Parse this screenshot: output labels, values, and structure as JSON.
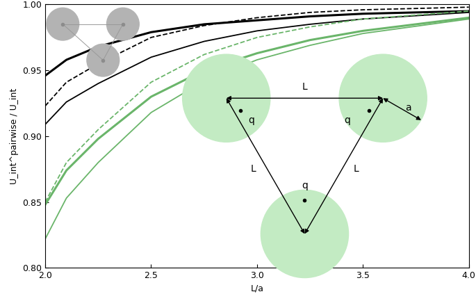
{
  "chart_data": {
    "type": "line",
    "xlabel": "L/a",
    "ylabel": "U_int^pairwise / U_int",
    "xlim": [
      2.0,
      4.0
    ],
    "ylim": [
      0.8,
      1.0
    ],
    "xticks": [
      2.0,
      2.5,
      3.0,
      3.5,
      4.0
    ],
    "yticks": [
      {
        "value": 0.8,
        "label": "0.80"
      },
      0.85,
      {
        "value": 0.9,
        "label": "0.90"
      },
      0.95,
      {
        "value": 1.0,
        "label": "1.00"
      }
    ],
    "grid": false,
    "x": [
      2.0,
      2.1,
      2.25,
      2.5,
      2.75,
      3.0,
      3.25,
      3.5,
      4.0
    ],
    "series": [
      {
        "color": "#000000",
        "line_style": "solid",
        "values": [
          0.946,
          0.958,
          0.968,
          0.979,
          0.985,
          0.988,
          0.991,
          0.993,
          0.995
        ]
      },
      {
        "color": "#000000",
        "line_style": "dashed",
        "values": [
          0.923,
          0.941,
          0.955,
          0.975,
          0.984,
          0.99,
          0.994,
          0.996,
          0.998
        ]
      },
      {
        "color": "#000000",
        "line_style": "solid",
        "values": [
          0.909,
          0.926,
          0.94,
          0.96,
          0.972,
          0.98,
          0.985,
          0.989,
          0.994
        ]
      },
      {
        "color": "#6ab56a",
        "line_style": "dashed",
        "values": [
          0.85,
          0.88,
          0.905,
          0.941,
          0.962,
          0.975,
          0.983,
          0.989,
          0.995
        ]
      },
      {
        "color": "#6ab56a",
        "line_style": "solid",
        "values": [
          0.848,
          0.874,
          0.898,
          0.93,
          0.95,
          0.963,
          0.973,
          0.98,
          0.99
        ]
      },
      {
        "color": "#6ab56a",
        "line_style": "solid",
        "values": [
          0.822,
          0.853,
          0.88,
          0.918,
          0.942,
          0.958,
          0.969,
          0.978,
          0.989
        ]
      }
    ],
    "annotations": [
      "L",
      "L",
      "L",
      "q",
      "q",
      "q",
      "a"
    ]
  }
}
